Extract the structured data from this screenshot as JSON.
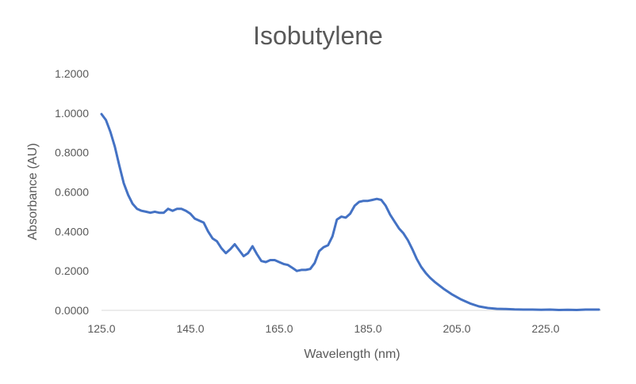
{
  "chart_data": {
    "type": "line",
    "title": "Isobutylene",
    "xlabel": "Wavelength (nm)",
    "ylabel": "Absorbance (AU)",
    "xlim": [
      125,
      237.5
    ],
    "ylim": [
      0,
      1.2
    ],
    "x_ticks": [
      "125.0",
      "145.0",
      "165.0",
      "185.0",
      "205.0",
      "225.0"
    ],
    "x_tick_values": [
      125,
      145,
      165,
      185,
      205,
      225
    ],
    "y_ticks": [
      "0.0000",
      "0.2000",
      "0.4000",
      "0.6000",
      "0.8000",
      "1.0000",
      "1.2000"
    ],
    "y_tick_values": [
      0,
      0.2,
      0.4,
      0.6,
      0.8,
      1.0,
      1.2
    ],
    "grid": false,
    "legend": "none",
    "series": [
      {
        "color": "#4472C4",
        "x": [
          125.0,
          126.0,
          127.0,
          128.0,
          129.0,
          130.0,
          131.0,
          132.0,
          133.0,
          134.0,
          135.0,
          136.0,
          137.0,
          138.0,
          139.0,
          140.0,
          141.0,
          142.0,
          143.0,
          144.0,
          145.0,
          146.0,
          147.0,
          148.0,
          149.0,
          150.0,
          151.0,
          152.0,
          153.0,
          154.0,
          155.0,
          156.0,
          157.0,
          158.0,
          159.0,
          160.0,
          161.0,
          162.0,
          163.0,
          164.0,
          165.0,
          166.0,
          167.0,
          168.0,
          169.0,
          170.0,
          171.0,
          172.0,
          173.0,
          174.0,
          175.0,
          176.0,
          177.0,
          178.0,
          179.0,
          180.0,
          181.0,
          182.0,
          183.0,
          184.0,
          185.0,
          186.0,
          187.0,
          188.0,
          189.0,
          190.0,
          191.0,
          192.0,
          193.0,
          194.0,
          195.0,
          196.0,
          197.0,
          198.0,
          199.0,
          200.0,
          202.0,
          204.0,
          206.0,
          208.0,
          210.0,
          212.0,
          214.0,
          216.0,
          218.0,
          220.0,
          222.0,
          224.0,
          226.0,
          228.0,
          230.0,
          232.0,
          234.0,
          236.0,
          237.0
        ],
        "values": [
          0.995,
          0.965,
          0.905,
          0.83,
          0.735,
          0.645,
          0.585,
          0.54,
          0.515,
          0.505,
          0.5,
          0.495,
          0.5,
          0.495,
          0.495,
          0.515,
          0.505,
          0.515,
          0.515,
          0.505,
          0.49,
          0.465,
          0.455,
          0.445,
          0.4,
          0.365,
          0.35,
          0.315,
          0.29,
          0.31,
          0.335,
          0.305,
          0.275,
          0.29,
          0.325,
          0.285,
          0.25,
          0.245,
          0.255,
          0.255,
          0.245,
          0.235,
          0.23,
          0.215,
          0.2,
          0.205,
          0.205,
          0.21,
          0.24,
          0.3,
          0.32,
          0.33,
          0.375,
          0.46,
          0.475,
          0.47,
          0.49,
          0.53,
          0.55,
          0.555,
          0.555,
          0.56,
          0.565,
          0.56,
          0.53,
          0.485,
          0.45,
          0.415,
          0.39,
          0.355,
          0.31,
          0.26,
          0.22,
          0.19,
          0.165,
          0.145,
          0.11,
          0.08,
          0.055,
          0.035,
          0.02,
          0.012,
          0.008,
          0.007,
          0.005,
          0.004,
          0.004,
          0.003,
          0.004,
          0.002,
          0.003,
          0.002,
          0.004,
          0.004,
          0.004
        ]
      }
    ]
  }
}
